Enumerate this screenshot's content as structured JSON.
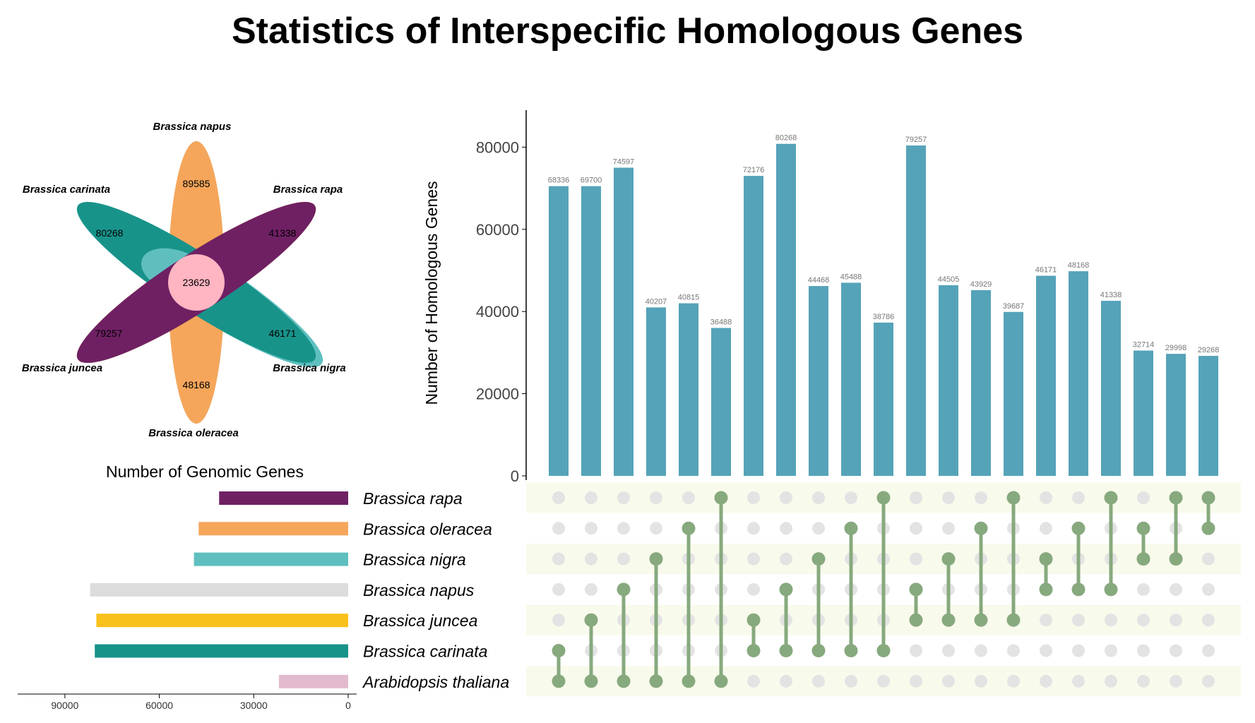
{
  "title": "Statistics of Interspecific Homologous Genes",
  "colors": {
    "bar": "#55a3b8",
    "dot_active": "#87a97e",
    "dot_inactive": "#e3e3e3",
    "stripe": "#f8faec"
  },
  "chart_data": [
    {
      "type": "venn-flower",
      "core_value": "23629",
      "core_color": "#ffb5c2",
      "petals": [
        {
          "name": "Brassica napus",
          "value": "89585",
          "color": "#d9d9db"
        },
        {
          "name": "Brassica rapa",
          "value": "41338",
          "color": "#6f2063"
        },
        {
          "name": "Brassica nigra",
          "value": "46171",
          "color": "#5fbfbf"
        },
        {
          "name": "Brassica oleracea",
          "value": "48168",
          "color": "#f5a65b"
        },
        {
          "name": "Brassica juncea",
          "value": "79257",
          "color": "#f9c11b"
        },
        {
          "name": "Brassica carinata",
          "value": "80268",
          "color": "#18938a"
        }
      ]
    },
    {
      "type": "bar",
      "orientation": "horizontal",
      "title": "Number of Genomic Genes",
      "categories": [
        "Brassica rapa",
        "Brassica oleracea",
        "Brassica nigra",
        "Brassica napus",
        "Brassica juncea",
        "Brassica carinata",
        "Arabidopsis thaliana"
      ],
      "values": [
        41000,
        47500,
        49000,
        82000,
        80000,
        80500,
        22000
      ],
      "colors": [
        "#6f2063",
        "#f5a65b",
        "#5fbfbf",
        "#dcdcdc",
        "#f9c11b",
        "#18938a",
        "#e2bacd"
      ],
      "xlim": [
        0,
        105000
      ],
      "xticks": [
        90000,
        60000,
        30000,
        0
      ],
      "inverted": true
    },
    {
      "type": "bar",
      "title": "",
      "xlabel": "",
      "ylabel": "Number of Homologous Genes",
      "ylim": [
        0,
        89000
      ],
      "yticks": [
        0,
        20000,
        40000,
        60000,
        80000
      ],
      "values": [
        70500,
        70500,
        75000,
        41000,
        42000,
        36000,
        73000,
        80800,
        46200,
        47000,
        37300,
        80400,
        46400,
        45200,
        39900,
        48700,
        49800,
        42600,
        30500,
        29700,
        29200
      ],
      "value_labels": [
        "68336",
        "69700",
        "74597",
        "40207",
        "40815",
        "36488",
        "72176",
        "80268",
        "44468",
        "45488",
        "38786",
        "79257",
        "44505",
        "43929",
        "39687",
        "46171",
        "48168",
        "41338",
        "32714",
        "29998",
        "29268"
      ]
    },
    {
      "type": "upset-matrix",
      "sets": [
        "Brassica rapa",
        "Brassica oleracea",
        "Brassica nigra",
        "Brassica napus",
        "Brassica juncea",
        "Brassica carinata",
        "Arabidopsis thaliana"
      ],
      "combinations": [
        [
          5,
          6
        ],
        [
          4,
          6
        ],
        [
          3,
          6
        ],
        [
          2,
          6
        ],
        [
          1,
          6
        ],
        [
          0,
          6
        ],
        [
          4,
          5
        ],
        [
          3,
          5
        ],
        [
          2,
          5
        ],
        [
          1,
          5
        ],
        [
          0,
          5
        ],
        [
          3,
          4
        ],
        [
          2,
          4
        ],
        [
          1,
          4
        ],
        [
          0,
          4
        ],
        [
          2,
          3
        ],
        [
          1,
          3
        ],
        [
          0,
          3
        ],
        [
          1,
          2
        ],
        [
          0,
          2
        ],
        [
          0,
          1
        ]
      ]
    }
  ]
}
